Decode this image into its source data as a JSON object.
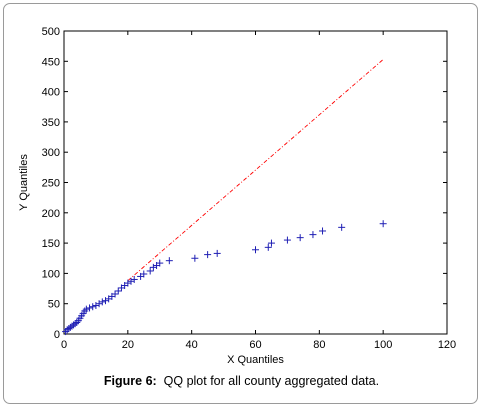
{
  "chart_data": {
    "type": "scatter",
    "xlabel": "X Quantiles",
    "ylabel": "Y Quantiles",
    "xlim": [
      0,
      120
    ],
    "ylim": [
      0,
      500
    ],
    "xticks": [
      0,
      20,
      40,
      60,
      80,
      100,
      120
    ],
    "yticks": [
      0,
      50,
      100,
      150,
      200,
      250,
      300,
      350,
      400,
      450,
      500
    ],
    "grid": false,
    "marker": "+",
    "marker_color": "#1f1fb4",
    "reference_line": {
      "x": [
        20,
        100
      ],
      "y": [
        88,
        453
      ],
      "color": "#ff0000",
      "style": "dash-dot"
    },
    "points": [
      [
        0.5,
        4
      ],
      [
        1,
        7
      ],
      [
        1.5,
        9
      ],
      [
        2,
        11
      ],
      [
        2.5,
        13
      ],
      [
        3,
        15
      ],
      [
        3.5,
        17
      ],
      [
        4,
        19
      ],
      [
        4.5,
        22
      ],
      [
        5,
        26
      ],
      [
        5.5,
        30
      ],
      [
        6,
        34
      ],
      [
        6.5,
        38
      ],
      [
        7,
        41
      ],
      [
        8,
        43
      ],
      [
        9,
        45
      ],
      [
        10,
        47
      ],
      [
        11,
        50
      ],
      [
        12,
        53
      ],
      [
        13,
        55
      ],
      [
        14,
        58
      ],
      [
        15,
        62
      ],
      [
        16,
        66
      ],
      [
        17,
        71
      ],
      [
        18,
        76
      ],
      [
        19,
        80
      ],
      [
        20,
        84
      ],
      [
        21,
        87
      ],
      [
        22,
        90
      ],
      [
        24,
        95
      ],
      [
        25,
        99
      ],
      [
        27,
        104
      ],
      [
        28,
        110
      ],
      [
        29,
        113
      ],
      [
        30,
        117
      ],
      [
        33,
        121
      ],
      [
        41,
        125
      ],
      [
        45,
        131
      ],
      [
        48,
        133
      ],
      [
        60,
        139
      ],
      [
        64,
        143
      ],
      [
        65,
        150
      ],
      [
        70,
        155
      ],
      [
        74,
        159
      ],
      [
        78,
        164
      ],
      [
        81,
        170
      ],
      [
        87,
        176
      ],
      [
        100,
        182
      ]
    ]
  },
  "caption": {
    "label": "Figure 6:",
    "text": "QQ plot for all county aggregated data."
  }
}
